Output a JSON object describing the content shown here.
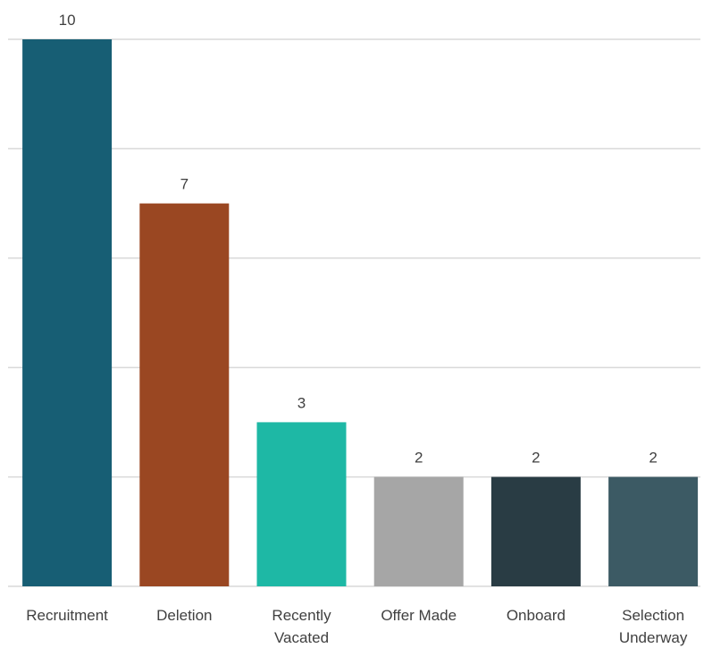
{
  "chart_data": {
    "type": "bar",
    "title": "",
    "xlabel": "",
    "ylabel": "",
    "categories": [
      [
        "Recruitment"
      ],
      [
        "Deletion"
      ],
      [
        "Recently",
        "Vacated"
      ],
      [
        "Offer Made"
      ],
      [
        "Onboard"
      ],
      [
        "Selection",
        "Underway"
      ]
    ],
    "values": [
      10,
      7,
      3,
      2,
      2,
      2
    ],
    "colors": [
      "#175e74",
      "#9a4722",
      "#1eb8a5",
      "#a6a6a6",
      "#293c44",
      "#3c5a64"
    ],
    "ylim": [
      0,
      10
    ],
    "ytick_step": 2,
    "show_y_tick_labels": false,
    "grid": true,
    "data_labels": true,
    "legend": "none"
  }
}
